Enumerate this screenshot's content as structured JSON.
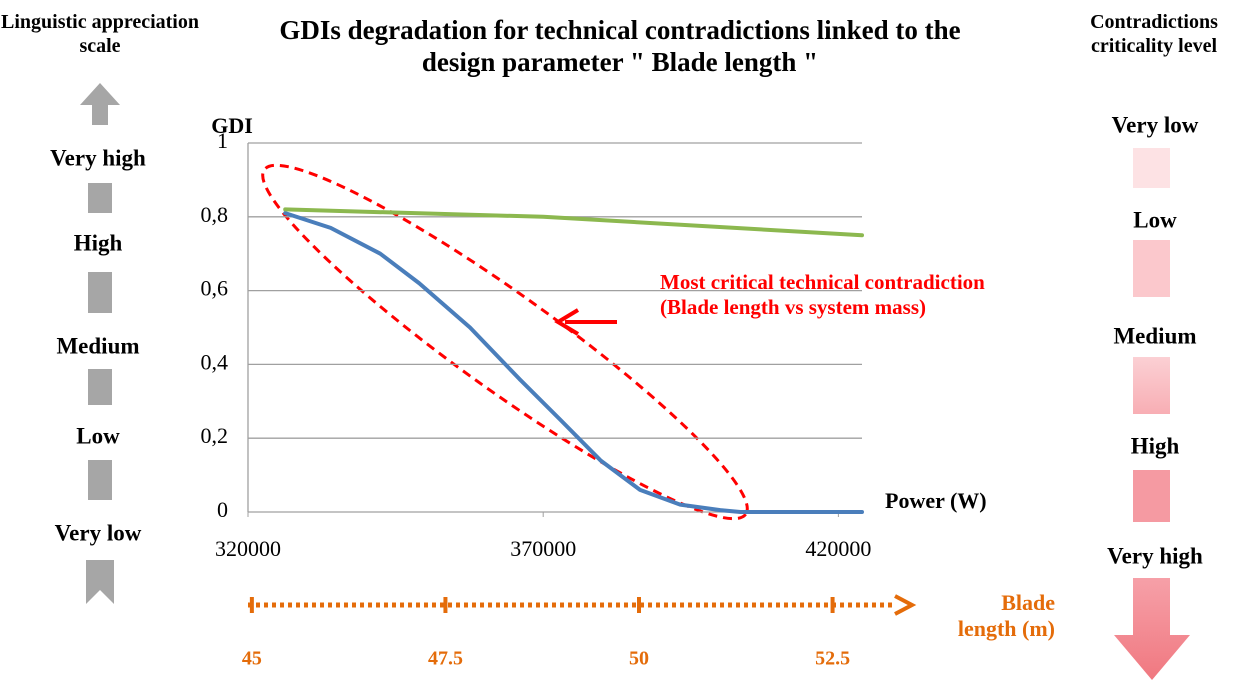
{
  "chart_data": {
    "type": "line",
    "title": "GDIs degradation for technical contradictions linked to the design parameter \" Blade length \"",
    "ylabel": "GDI",
    "xlabel": "Power (W)",
    "xlim": [
      320000,
      424000
    ],
    "xticks": [
      320000,
      370000,
      420000
    ],
    "ylim": [
      0,
      1
    ],
    "yticks": [
      0,
      {
        "value": 0.2,
        "label": "0,2"
      },
      {
        "value": 0.4,
        "label": "0,4"
      },
      {
        "value": 0.6,
        "label": "0,6"
      },
      {
        "value": 0.8,
        "label": "0,8"
      },
      1
    ],
    "grid": true,
    "series": [
      {
        "color": "#4a7ebb",
        "x": [
          326300,
          334000,
          342400,
          349000,
          357600,
          366000,
          372900,
          379700,
          386400,
          393200,
          400000,
          403400,
          424000
        ],
        "values": [
          0.81,
          0.77,
          0.7,
          0.62,
          0.5,
          0.36,
          0.25,
          0.14,
          0.06,
          0.02,
          0.005,
          0,
          0
        ]
      },
      {
        "color": "#8cb84f",
        "x": [
          326300,
          370000,
          424000
        ],
        "values": [
          0.82,
          0.8,
          0.75
        ]
      }
    ],
    "annotation": "Most critical technical contradiction (Blade length  vs system mass)",
    "x2label": "Blade length (m)",
    "x2lim": [
      44.95,
      52.88
    ],
    "x2ticks": [
      45,
      47.5,
      50,
      52.5
    ]
  },
  "left_scale": {
    "title": "Linguistic appreciation scale",
    "levels": [
      "Very high",
      "High",
      "Medium",
      "Low",
      "Very low"
    ]
  },
  "right_scale": {
    "title": "Contradictions criticality level",
    "levels": [
      "Very low",
      "Low",
      "Medium",
      "High",
      "Very high"
    ]
  }
}
